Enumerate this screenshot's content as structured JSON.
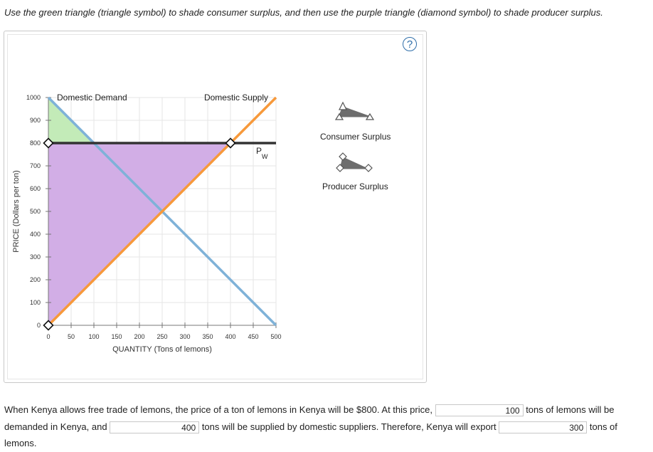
{
  "instructions": "Use the green triangle (triangle symbol) to shade consumer surplus, and then use the purple triangle (diamond symbol) to shade producer surplus.",
  "help_label": "?",
  "palette": {
    "consumer_surplus_label": "Consumer Surplus",
    "producer_surplus_label": "Producer Surplus",
    "consumer_color": "#c3ebb8",
    "producer_color": "#d2aee6"
  },
  "chart_data": {
    "type": "line",
    "xlabel": "QUANTITY (Tons of lemons)",
    "ylabel": "PRICE (Dollars per ton)",
    "xlim": [
      0,
      500
    ],
    "ylim": [
      0,
      1000
    ],
    "x_ticks": [
      "0",
      "50",
      "100",
      "150",
      "200",
      "250",
      "300",
      "350",
      "400",
      "450",
      "500"
    ],
    "y_ticks": [
      "0",
      "100",
      "200",
      "300",
      "400",
      "500",
      "600",
      "700",
      "800",
      "900",
      "1000"
    ],
    "grid": true,
    "series": [
      {
        "name": "Domestic Demand",
        "color": "#7fb2d8",
        "points": [
          [
            0,
            1000
          ],
          [
            500,
            0
          ]
        ]
      },
      {
        "name": "Domestic Supply",
        "color": "#f7993b",
        "points": [
          [
            0,
            0
          ],
          [
            400,
            800
          ],
          [
            500,
            1000
          ]
        ]
      },
      {
        "name": "PW",
        "color": "#333333",
        "points": [
          [
            0,
            800
          ],
          [
            500,
            800
          ]
        ]
      }
    ],
    "world_price_label": "P",
    "world_price_subscript": "W",
    "shaded_regions": [
      {
        "name": "Consumer Surplus",
        "color": "#c3ebb8",
        "points": [
          [
            0,
            1000
          ],
          [
            100,
            800
          ],
          [
            0,
            800
          ]
        ]
      },
      {
        "name": "Producer Surplus",
        "color": "#d2aee6",
        "points": [
          [
            0,
            800
          ],
          [
            400,
            800
          ],
          [
            0,
            0
          ]
        ]
      }
    ]
  },
  "question": {
    "part1": "When Kenya allows free trade of lemons, the price of a ton of lemons in Kenya will be $800. At this price,",
    "answer1": "100",
    "part2": "tons of lemons will be demanded in Kenya, and",
    "answer2": "400",
    "part3": "tons will be supplied by domestic suppliers. Therefore, Kenya will export",
    "answer3": "300",
    "part4": "tons of lemons."
  }
}
